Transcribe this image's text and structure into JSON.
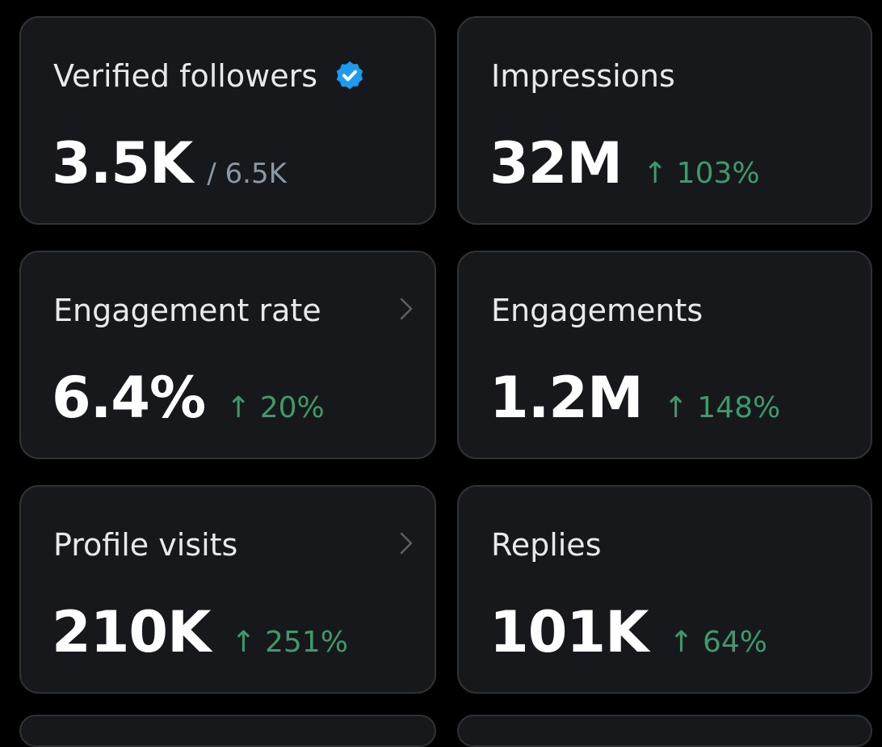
{
  "colors": {
    "background": "#000000",
    "card_background": "#16181c",
    "card_border": "#2f3336",
    "label_text": "#e7e9ea",
    "value_text": "#ffffff",
    "muted_text": "#8b98a5",
    "positive_change": "#3e9a6a",
    "verified_badge": "#1d9bf0"
  },
  "cards": {
    "verified_followers": {
      "label": "Verified followers",
      "value": "3.5K",
      "total": "/ 6.5K",
      "icon": "verified-badge-icon"
    },
    "impressions": {
      "label": "Impressions",
      "value": "32M",
      "change": "↑ 103%"
    },
    "engagement_rate": {
      "label": "Engagement rate",
      "value": "6.4%",
      "change": "↑ 20%",
      "icon": "chevron-right-icon"
    },
    "engagements": {
      "label": "Engagements",
      "value": "1.2M",
      "change": "↑ 148%"
    },
    "profile_visits": {
      "label": "Profile visits",
      "value": "210K",
      "change": "↑ 251%",
      "icon": "chevron-right-icon"
    },
    "replies": {
      "label": "Replies",
      "value": "101K",
      "change": "↑ 64%"
    }
  }
}
